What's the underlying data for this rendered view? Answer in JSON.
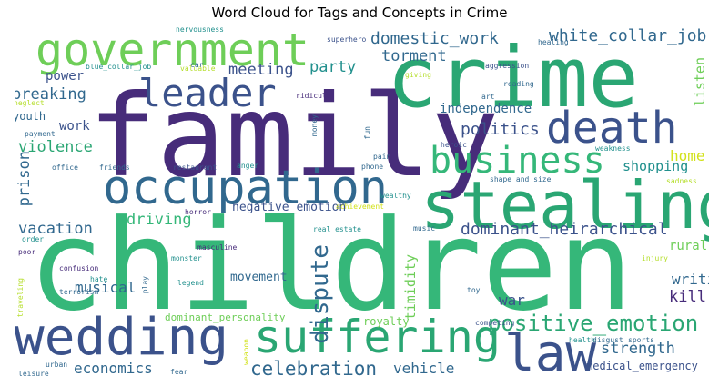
{
  "title": "Word Cloud for Tags and Concepts in Crime",
  "palette": {
    "dark_purple": "#472c7a",
    "indigo": "#3b528b",
    "blue": "#31688e",
    "teal": "#21908d",
    "green_teal": "#2aa673",
    "green": "#35b779",
    "lime": "#6ece58",
    "yellow_green": "#b5de2b",
    "yellow": "#d2e21b"
  },
  "words": [
    "family",
    "children",
    "crime",
    "government",
    "stealing",
    "occupation",
    "wedding",
    "suffering",
    "law",
    "business",
    "death",
    "leader",
    "positive_emotion",
    "celebration",
    "dominant_heirarchical",
    "domestic_work",
    "white_collar_job",
    "politics",
    "dispute",
    "violence",
    "vacation",
    "driving",
    "breaking",
    "meeting",
    "torment",
    "party",
    "economics",
    "strength",
    "shopping",
    "home",
    "writing",
    "kill",
    "musical",
    "prison",
    "war",
    "vehicle",
    "listen",
    "independence",
    "negative_emotion",
    "rural",
    "power",
    "work",
    "timidity",
    "movement",
    "royalty",
    "medical_emergency",
    "dominant_personality",
    "youth",
    "nervousness",
    "superhero",
    "car",
    "blue_collar_job",
    "valuable",
    "aggression",
    "healing",
    "neglect",
    "giving",
    "reading",
    "ridicule",
    "art",
    "payment",
    "money",
    "fun",
    "heroic",
    "weakness",
    "office",
    "friends",
    "restaurant",
    "anger",
    "phone",
    "pain",
    "shape_and_size",
    "sadness",
    "wealthy",
    "achievement",
    "real_estate",
    "music",
    "horror",
    "order",
    "masculine",
    "poor",
    "monster",
    "injury",
    "confusion",
    "hate",
    "play",
    "legend",
    "traveling",
    "terrorism",
    "toy",
    "competing",
    "weapon",
    "health",
    "disgust",
    "sports",
    "urban",
    "leisure",
    "fear"
  ]
}
